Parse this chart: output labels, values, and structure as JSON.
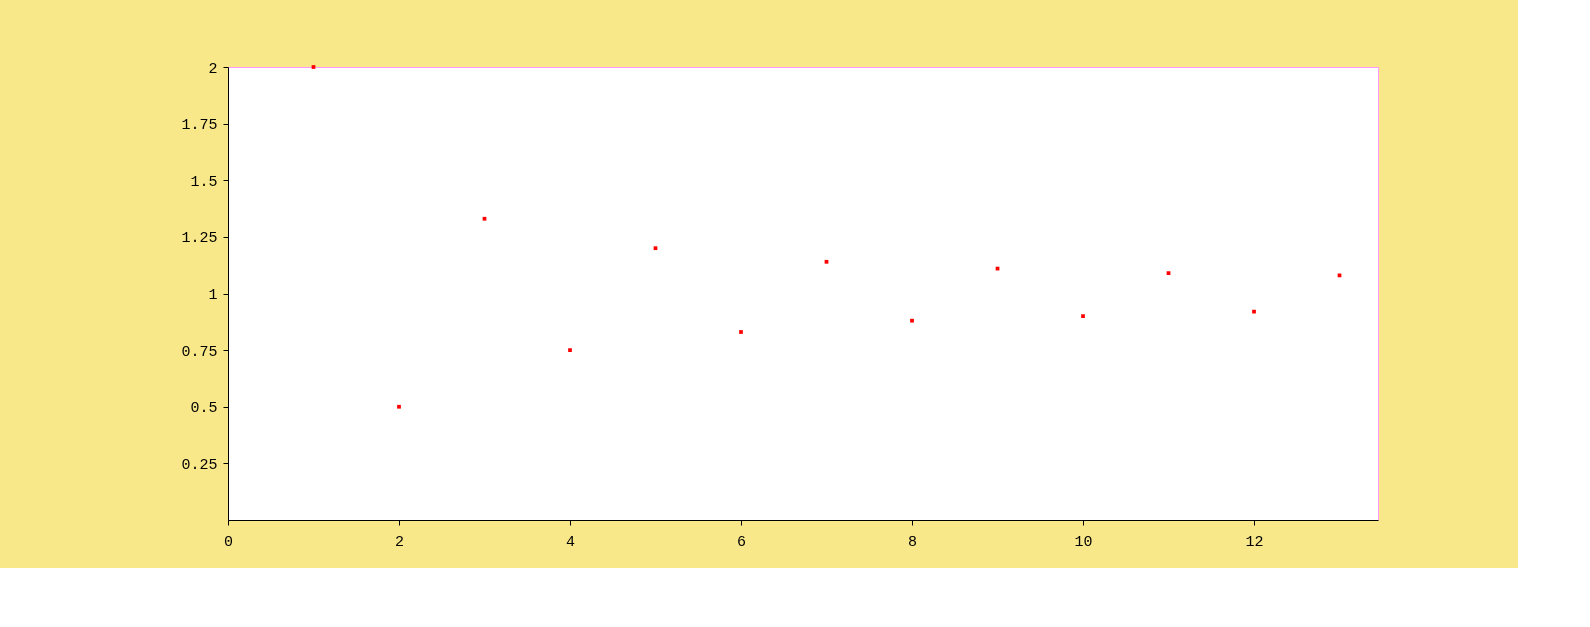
{
  "chart_data": {
    "type": "scatter",
    "x": [
      1,
      2,
      3,
      4,
      5,
      6,
      7,
      8,
      9,
      10,
      11,
      12,
      13
    ],
    "series": [
      {
        "color": "#ff0000",
        "values": [
          2,
          0.5,
          1.33,
          0.75,
          1.2,
          0.83,
          1.14,
          0.88,
          1.11,
          0.9,
          1.09,
          0.92,
          1.08
        ]
      }
    ],
    "xlim": [
      0,
      13.45
    ],
    "xticks": [
      0,
      2,
      4,
      6,
      8,
      10,
      12
    ],
    "ylim": [
      0,
      2
    ],
    "yticks": [
      0.25,
      0.5,
      0.75,
      1,
      1.25,
      1.5,
      1.75,
      2
    ],
    "marker": "square",
    "grid": false,
    "legend": false
  }
}
